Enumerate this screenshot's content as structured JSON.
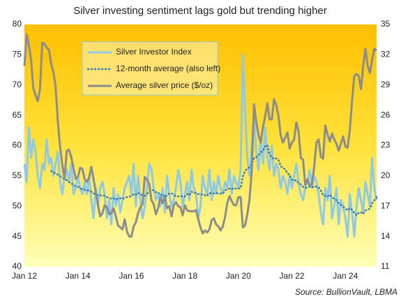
{
  "chart_data": {
    "type": "line",
    "title": "Silver investing sentiment lags gold but trending higher",
    "source": "Source: BullionVault, LBMA",
    "x": [
      "2012-01",
      "2012-02",
      "2012-03",
      "2012-04",
      "2012-05",
      "2012-06",
      "2012-07",
      "2012-08",
      "2012-09",
      "2012-10",
      "2012-11",
      "2012-12",
      "2013-01",
      "2013-02",
      "2013-03",
      "2013-04",
      "2013-05",
      "2013-06",
      "2013-07",
      "2013-08",
      "2013-09",
      "2013-10",
      "2013-11",
      "2013-12",
      "2014-01",
      "2014-02",
      "2014-03",
      "2014-04",
      "2014-05",
      "2014-06",
      "2014-07",
      "2014-08",
      "2014-09",
      "2014-10",
      "2014-11",
      "2014-12",
      "2015-01",
      "2015-02",
      "2015-03",
      "2015-04",
      "2015-05",
      "2015-06",
      "2015-07",
      "2015-08",
      "2015-09",
      "2015-10",
      "2015-11",
      "2015-12",
      "2016-01",
      "2016-02",
      "2016-03",
      "2016-04",
      "2016-05",
      "2016-06",
      "2016-07",
      "2016-08",
      "2016-09",
      "2016-10",
      "2016-11",
      "2016-12",
      "2017-01",
      "2017-02",
      "2017-03",
      "2017-04",
      "2017-05",
      "2017-06",
      "2017-07",
      "2017-08",
      "2017-09",
      "2017-10",
      "2017-11",
      "2017-12",
      "2018-01",
      "2018-02",
      "2018-03",
      "2018-04",
      "2018-05",
      "2018-06",
      "2018-07",
      "2018-08",
      "2018-09",
      "2018-10",
      "2018-11",
      "2018-12",
      "2019-01",
      "2019-02",
      "2019-03",
      "2019-04",
      "2019-05",
      "2019-06",
      "2019-07",
      "2019-08",
      "2019-09",
      "2019-10",
      "2019-11",
      "2019-12",
      "2020-01",
      "2020-02",
      "2020-03",
      "2020-04",
      "2020-05",
      "2020-06",
      "2020-07",
      "2020-08",
      "2020-09",
      "2020-10",
      "2020-11",
      "2020-12",
      "2021-01",
      "2021-02",
      "2021-03",
      "2021-04",
      "2021-05",
      "2021-06",
      "2021-07",
      "2021-08",
      "2021-09",
      "2021-10",
      "2021-11",
      "2021-12",
      "2022-01",
      "2022-02",
      "2022-03",
      "2022-04",
      "2022-05",
      "2022-06",
      "2022-07",
      "2022-08",
      "2022-09",
      "2022-10",
      "2022-11",
      "2022-12",
      "2023-01",
      "2023-02",
      "2023-03",
      "2023-04",
      "2023-05",
      "2023-06",
      "2023-07",
      "2023-08",
      "2023-09",
      "2023-10",
      "2023-11",
      "2023-12",
      "2024-01",
      "2024-02",
      "2024-03",
      "2024-04",
      "2024-05",
      "2024-06",
      "2024-07",
      "2024-08",
      "2024-09",
      "2024-10",
      "2024-11",
      "2024-12",
      "2025-01",
      "2025-02",
      "2025-03"
    ],
    "series": [
      {
        "name": "Silver Investor Index",
        "color": "#8ec9e6",
        "dash": false,
        "axis": "y",
        "values": [
          57,
          54,
          63,
          58,
          61,
          59,
          55,
          53,
          57,
          56,
          61,
          57,
          58,
          55,
          57,
          59,
          54,
          52,
          55,
          56,
          54,
          57,
          52,
          53,
          55,
          53,
          52,
          54,
          52,
          55,
          51,
          48,
          53,
          50,
          53,
          54,
          52,
          48,
          51,
          47,
          53,
          50,
          52,
          49,
          51,
          53,
          54,
          55,
          52,
          57,
          50,
          55,
          51,
          48,
          50,
          53,
          57,
          56,
          53,
          51,
          52,
          50,
          53,
          49,
          55,
          52,
          50,
          51,
          53,
          56,
          54,
          50,
          52,
          54,
          51,
          56,
          53,
          52,
          48,
          50,
          55,
          53,
          52,
          56,
          51,
          54,
          52,
          55,
          53,
          52,
          54,
          53,
          56,
          52,
          55,
          54,
          53,
          56,
          75,
          66,
          58,
          55,
          60,
          65,
          59,
          56,
          61,
          57,
          63,
          58,
          56,
          60,
          55,
          57,
          56,
          53,
          55,
          54,
          52,
          55,
          53,
          55,
          57,
          54,
          52,
          51,
          53,
          54,
          56,
          53,
          55,
          54,
          52,
          49,
          47,
          53,
          51,
          55,
          48,
          50,
          53,
          47,
          51,
          50,
          48,
          45,
          52,
          49,
          45,
          50,
          53,
          51,
          49,
          54,
          52,
          50,
          58,
          53,
          51
        ]
      },
      {
        "name": "12-month average (also left)",
        "color": "#3a7ab8",
        "dash": true,
        "axis": "y",
        "values": [
          null,
          null,
          null,
          null,
          null,
          null,
          null,
          null,
          null,
          null,
          null,
          null,
          55.8,
          55.6,
          55.4,
          55.2,
          55,
          54.7,
          54.5,
          54.3,
          54,
          53.8,
          53.5,
          53.3,
          53.2,
          53,
          52.8,
          52.7,
          52.6,
          52.6,
          52.4,
          52.1,
          52,
          51.8,
          51.8,
          51.8,
          51.7,
          51.5,
          51.4,
          51.2,
          51.3,
          51.1,
          51.2,
          51.3,
          51.2,
          51.4,
          51.5,
          51.6,
          51.6,
          52,
          51.9,
          52.2,
          52,
          51.8,
          51.7,
          52,
          52.5,
          52.7,
          52.6,
          52.3,
          52.3,
          51.8,
          52,
          51.5,
          51.8,
          52.1,
          52.1,
          51.9,
          51.6,
          51.6,
          51.7,
          51.6,
          51.6,
          52,
          51.8,
          52.4,
          52.2,
          52.2,
          52,
          51.9,
          52,
          51.8,
          51.7,
          52.2,
          52.1,
          52.1,
          52.2,
          52.1,
          52.1,
          52.1,
          52.6,
          52.8,
          52.9,
          52.8,
          53,
          52.9,
          52.9,
          53,
          54.9,
          55.8,
          56.2,
          56.4,
          56.9,
          57.9,
          58.1,
          58.4,
          58.9,
          59.1,
          59.9,
          60.1,
          58.5,
          58,
          57.8,
          57.9,
          57.6,
          56.6,
          56.3,
          56.1,
          55.4,
          55.2,
          54.4,
          54.2,
          54.3,
          53.8,
          53.6,
          53.2,
          53,
          53.1,
          53.2,
          53.1,
          53.3,
          53.2,
          53.1,
          52.6,
          51.8,
          51.7,
          51.6,
          51.9,
          51.5,
          51.2,
          51,
          50.5,
          50.2,
          49.9,
          49.6,
          49.3,
          49.7,
          49.4,
          48.9,
          48.5,
          48.9,
          49,
          48.7,
          49.3,
          49.4,
          49.6,
          50.5,
          51,
          51.5
        ]
      },
      {
        "name": "Average silver price ($/oz)",
        "color": "#8c8c8c",
        "dash": false,
        "axis": "y2",
        "values": [
          30.9,
          34,
          33,
          31.5,
          28.7,
          28,
          27.4,
          28.6,
          33.2,
          33.1,
          32.7,
          32.5,
          31.1,
          30.3,
          28.8,
          25.4,
          22.9,
          21.1,
          19.7,
          22.5,
          22.6,
          21.9,
          20.8,
          19.7,
          19.9,
          20.8,
          20.7,
          19.7,
          19.4,
          19.8,
          20.9,
          19.7,
          18.4,
          17.1,
          16,
          16.3,
          17.1,
          16.9,
          16.2,
          16.3,
          16.8,
          16,
          15.1,
          14.9,
          14.7,
          15.7,
          14.5,
          14,
          14,
          15,
          15.4,
          16.3,
          16.9,
          17.2,
          19.9,
          19.6,
          19.2,
          17.6,
          17.2,
          16.2,
          16.8,
          17.9,
          17.3,
          17.9,
          16.8,
          17,
          16,
          17.1,
          17.4,
          17,
          16.9,
          16.1,
          17.1,
          16.6,
          16.5,
          16.5,
          16.5,
          16.6,
          15.7,
          14.9,
          14.3,
          14.6,
          14.4,
          14.7,
          15.6,
          15.8,
          15.2,
          15,
          14.6,
          15,
          15.9,
          17.3,
          18,
          17.5,
          17.1,
          17.1,
          17.9,
          17.9,
          14.9,
          15.1,
          16.2,
          17.7,
          20.5,
          27.1,
          25.4,
          24.1,
          23.3,
          24.8,
          25.9,
          27.2,
          25.6,
          25.6,
          27.6,
          27,
          25.9,
          24,
          23.3,
          23.8,
          24.3,
          22.7,
          23.3,
          23.6,
          25.3,
          24.4,
          21.8,
          21.6,
          19.1,
          19.7,
          19,
          19.2,
          20.9,
          23.3,
          23.6,
          21.9,
          21.7,
          25,
          24.1,
          23.4,
          24.2,
          23.6,
          23.2,
          22.5,
          23.2,
          23.9,
          22.9,
          22.8,
          24.6,
          27.5,
          29.9,
          30.1,
          29.9,
          28.6,
          30.9,
          32.6,
          30.9,
          30.2,
          31.5,
          32.6,
          32.4
        ]
      }
    ],
    "xlim": [
      "2012-01",
      "2025-03"
    ],
    "xticks": [
      {
        "value": "2012-01",
        "label": "Jan 12"
      },
      {
        "value": "2014-01",
        "label": "Jan 14"
      },
      {
        "value": "2016-01",
        "label": "Jan 16"
      },
      {
        "value": "2018-01",
        "label": "Jan 18"
      },
      {
        "value": "2020-01",
        "label": "Jan 20"
      },
      {
        "value": "2022-01",
        "label": "Jan 22"
      },
      {
        "value": "2024-01",
        "label": "Jan 24"
      }
    ],
    "ylim": [
      40,
      80
    ],
    "yticks": [
      40,
      45,
      50,
      55,
      60,
      65,
      70,
      75,
      80
    ],
    "y2lim": [
      11,
      35
    ],
    "y2ticks": [
      11,
      14,
      17,
      20,
      23,
      26,
      29,
      32,
      35
    ],
    "grid": false,
    "legend": "upper left"
  }
}
